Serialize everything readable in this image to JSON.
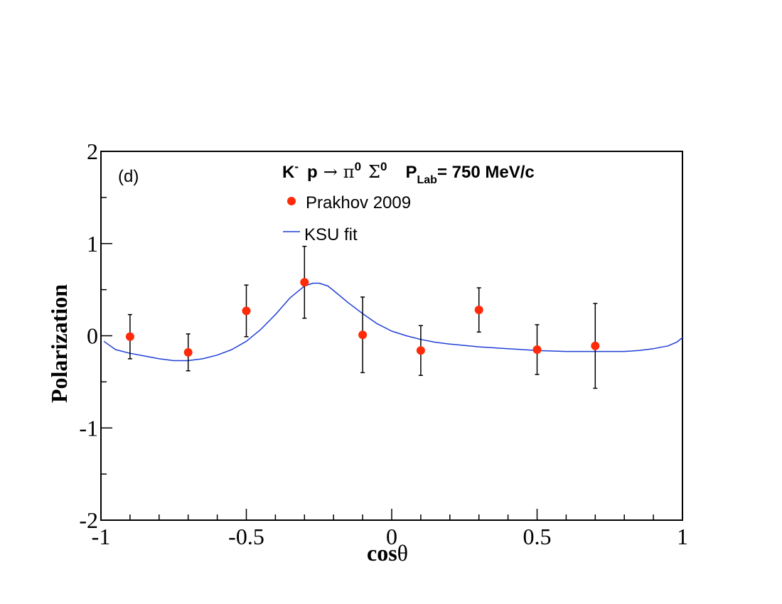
{
  "chart_data": {
    "type": "scatter",
    "panel_label": "(d)",
    "title": {
      "reaction_k": "K",
      "reaction_k_sup": "-",
      "reaction_p": "p",
      "arrow": "→",
      "pi": "π",
      "pi_sup": "0",
      "sigma": "Σ",
      "sigma_sup": "0",
      "plab_p": "P",
      "plab_sub": "Lab",
      "plab_value": "= 750 MeV/c"
    },
    "xlabel_bold": "cos",
    "xlabel_symbol": "θ",
    "ylabel": "Polarization",
    "xlim": [
      -1,
      1
    ],
    "ylim": [
      -2,
      2
    ],
    "x_ticks": [
      {
        "value": -1,
        "label": "-1"
      },
      {
        "value": -0.5,
        "label": "-0.5"
      },
      {
        "value": 0,
        "label": "0"
      },
      {
        "value": 0.5,
        "label": "0.5"
      },
      {
        "value": 1,
        "label": "1"
      }
    ],
    "y_ticks": [
      {
        "value": 2,
        "label": "2"
      },
      {
        "value": 1,
        "label": "1"
      },
      {
        "value": 0,
        "label": "0"
      },
      {
        "value": -1,
        "label": "-1"
      },
      {
        "value": -2,
        "label": "-2"
      }
    ],
    "legend": [
      {
        "name": "Prakhov 2009",
        "kind": "marker"
      },
      {
        "name": "KSU fit",
        "kind": "line"
      }
    ],
    "series": [
      {
        "name": "Prakhov 2009",
        "kind": "points",
        "color": "#ff2a0a",
        "points": [
          {
            "x": -0.9,
            "y": -0.01,
            "err": 0.24
          },
          {
            "x": -0.7,
            "y": -0.18,
            "err": 0.2
          },
          {
            "x": -0.5,
            "y": 0.27,
            "err": 0.28
          },
          {
            "x": -0.3,
            "y": 0.58,
            "err": 0.39
          },
          {
            "x": -0.1,
            "y": 0.01,
            "err": 0.41
          },
          {
            "x": 0.1,
            "y": -0.16,
            "err": 0.27
          },
          {
            "x": 0.3,
            "y": 0.28,
            "err": 0.24
          },
          {
            "x": 0.5,
            "y": -0.15,
            "err": 0.27
          },
          {
            "x": 0.7,
            "y": -0.11,
            "err": 0.46
          }
        ]
      },
      {
        "name": "KSU fit",
        "kind": "line",
        "color": "#1f3fd6",
        "x": [
          -0.99,
          -0.95,
          -0.9,
          -0.85,
          -0.8,
          -0.75,
          -0.7,
          -0.65,
          -0.6,
          -0.55,
          -0.5,
          -0.45,
          -0.4,
          -0.35,
          -0.3,
          -0.27,
          -0.25,
          -0.22,
          -0.2,
          -0.15,
          -0.1,
          -0.05,
          0.0,
          0.05,
          0.1,
          0.15,
          0.2,
          0.3,
          0.4,
          0.5,
          0.6,
          0.7,
          0.8,
          0.85,
          0.9,
          0.95,
          0.98,
          1.0
        ],
        "y": [
          -0.06,
          -0.15,
          -0.19,
          -0.22,
          -0.25,
          -0.27,
          -0.27,
          -0.25,
          -0.21,
          -0.15,
          -0.06,
          0.07,
          0.23,
          0.41,
          0.54,
          0.57,
          0.57,
          0.54,
          0.49,
          0.36,
          0.24,
          0.13,
          0.05,
          0.0,
          -0.04,
          -0.07,
          -0.09,
          -0.12,
          -0.14,
          -0.16,
          -0.17,
          -0.17,
          -0.17,
          -0.16,
          -0.14,
          -0.11,
          -0.07,
          -0.02
        ]
      }
    ]
  }
}
